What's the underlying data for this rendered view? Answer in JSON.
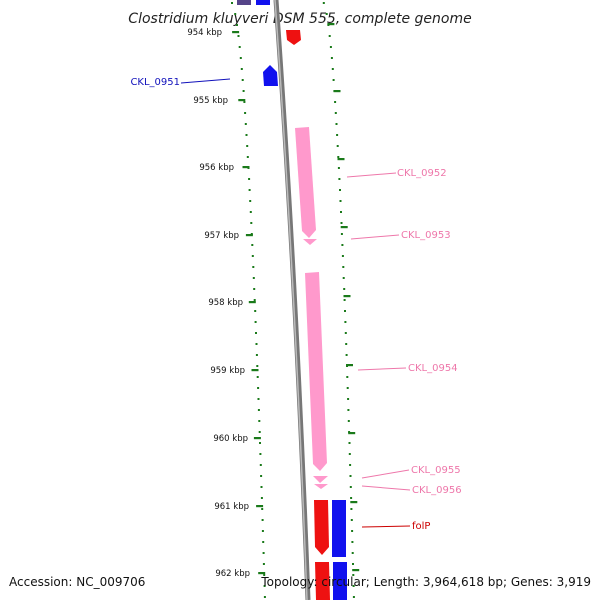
{
  "title": "Clostridium kluyveri DSM 555, complete genome",
  "footer": {
    "accession": "Accession: NC_009706",
    "topology": "Topology: circular; Length: 3,964,618 bp; Genes: 3,919"
  },
  "ruler": {
    "ticks": [
      "954 kbp",
      "955 kbp",
      "956 kbp",
      "957 kbp",
      "958 kbp",
      "959 kbp",
      "960 kbp",
      "961 kbp",
      "962 kbp"
    ],
    "color": "#1a7a1a"
  },
  "colors": {
    "backbone": "#888888",
    "forward_red": "#ee1111",
    "reverse_blue": "#1111ee",
    "pink": "#ff99cc",
    "dark_purple": "#554488"
  },
  "gene_labels": [
    {
      "id": "CKL_0951",
      "text": "CKL_0951",
      "color": "#1111bb"
    },
    {
      "id": "CKL_0952",
      "text": "CKL_0952",
      "color": "#ee77aa"
    },
    {
      "id": "CKL_0953",
      "text": "CKL_0953",
      "color": "#ee77aa"
    },
    {
      "id": "CKL_0954",
      "text": "CKL_0954",
      "color": "#ee77aa"
    },
    {
      "id": "CKL_0955",
      "text": "CKL_0955",
      "color": "#ee77aa"
    },
    {
      "id": "CKL_0956",
      "text": "CKL_0956",
      "color": "#ee77aa"
    },
    {
      "id": "folP",
      "text": "folP",
      "color": "#cc0000"
    }
  ]
}
